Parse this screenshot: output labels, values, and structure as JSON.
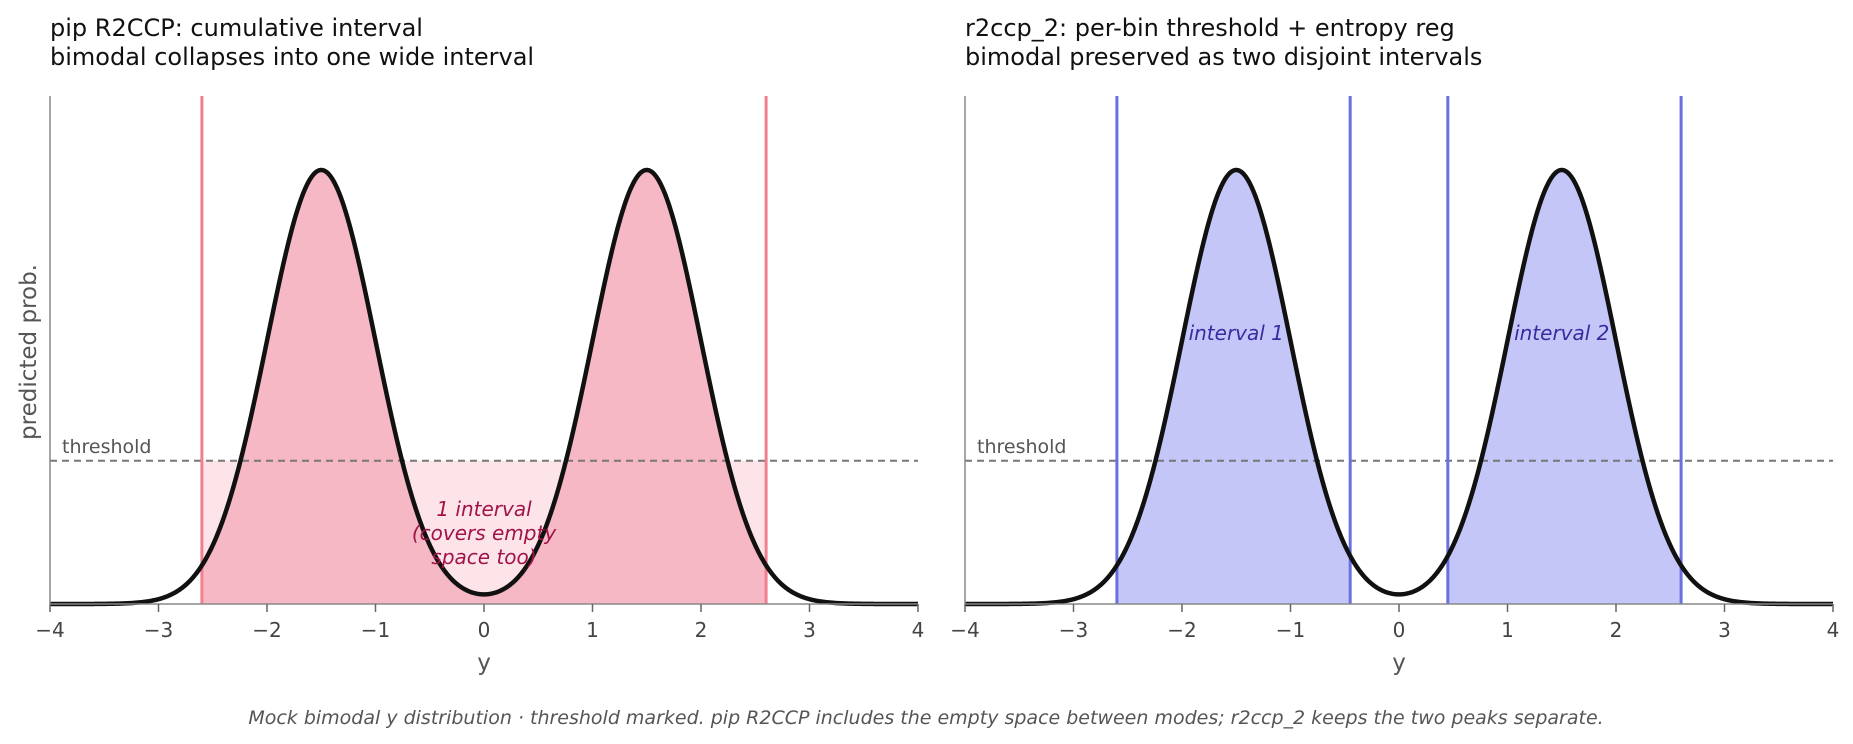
{
  "chart_data": [
    {
      "type": "line",
      "title_lines": [
        "pip R2CCP: cumulative interval",
        "bimodal collapses into one wide interval"
      ],
      "xlabel": "y",
      "ylabel": "predicted prob.",
      "xlim": [
        -4,
        4
      ],
      "xticks": [
        "−4",
        "−3",
        "−2",
        "−1",
        "0",
        "1",
        "2",
        "3",
        "4"
      ],
      "xtick_values": [
        -4,
        -3,
        -2,
        -1,
        0,
        1,
        2,
        3,
        4
      ],
      "density": {
        "modes": [
          -1.5,
          1.5
        ],
        "sigma": 0.5,
        "peak": 1.0
      },
      "threshold": {
        "value": 0.33,
        "label": "threshold"
      },
      "intervals": [
        [
          -2.6,
          2.6
        ]
      ],
      "boundaries": [
        -2.6,
        2.6
      ],
      "annotation": {
        "lines": [
          "1 interval",
          "(covers empty",
          "space too)"
        ],
        "x": 0.0
      },
      "colors": {
        "curve": "#111111",
        "boundary": "#f08090",
        "fill_band": "#fde4e9",
        "fill_under": "#f6b8c4",
        "annotation": "#a0144a"
      }
    },
    {
      "type": "line",
      "title_lines": [
        "r2ccp_2: per-bin threshold + entropy reg",
        "bimodal preserved as two disjoint intervals"
      ],
      "xlabel": "y",
      "xlim": [
        -4,
        4
      ],
      "xticks": [
        "−4",
        "−3",
        "−2",
        "−1",
        "0",
        "1",
        "2",
        "3",
        "4"
      ],
      "xtick_values": [
        -4,
        -3,
        -2,
        -1,
        0,
        1,
        2,
        3,
        4
      ],
      "density": {
        "modes": [
          -1.5,
          1.5
        ],
        "sigma": 0.5,
        "peak": 1.0
      },
      "threshold": {
        "value": 0.33,
        "label": "threshold"
      },
      "intervals": [
        [
          -2.6,
          -0.45
        ],
        [
          0.45,
          2.6
        ]
      ],
      "boundaries": [
        -2.6,
        -0.45,
        0.45,
        2.6
      ],
      "interval_labels": [
        {
          "text": "interval 1",
          "x": -1.5
        },
        {
          "text": "interval 2",
          "x": 1.5
        }
      ],
      "colors": {
        "curve": "#111111",
        "boundary": "#6a70e0",
        "fill_under": "#c4c6f8",
        "annotation": "#3a2aa0"
      }
    }
  ],
  "caption": "Mock bimodal y distribution · threshold marked.   pip R2CCP includes the empty space between modes; r2ccp_2 keeps the two peaks separate."
}
